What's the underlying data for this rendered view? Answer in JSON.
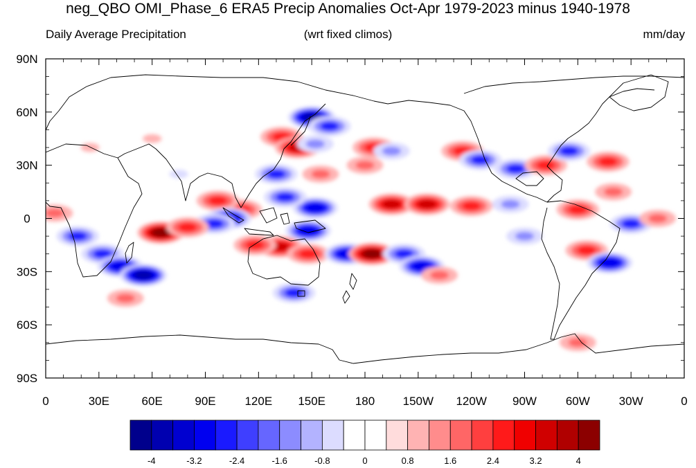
{
  "title": "neg_QBO OMI_Phase_6 ERA5 Precip Anomalies Oct-Apr 1979-2023 minus 1940-1978",
  "subtitle_left": "Daily Average Precipitation",
  "subtitle_center": "(wrt fixed climos)",
  "subtitle_right": "mm/day",
  "map": {
    "lon_labels": [
      "0",
      "30E",
      "60E",
      "90E",
      "120E",
      "150E",
      "180",
      "150W",
      "120W",
      "90W",
      "60W",
      "30W",
      "0"
    ],
    "lat_labels": [
      "90N",
      "60N",
      "30N",
      "0",
      "30S",
      "60S",
      "90S"
    ]
  },
  "colorbar": {
    "labels": [
      "-4",
      "-3.2",
      "-2.4",
      "-1.6",
      "-0.8",
      "0",
      "0.8",
      "1.6",
      "2.4",
      "3.2",
      "4"
    ],
    "colors": [
      "#00008c",
      "#0000b0",
      "#0000d0",
      "#0000f0",
      "#1a1aff",
      "#3f3fff",
      "#6666ff",
      "#8c8cff",
      "#b3b3ff",
      "#dcdcff",
      "#ffffff",
      "#ffffff",
      "#ffdcdc",
      "#ffb3b3",
      "#ff8c8c",
      "#ff6666",
      "#ff3f3f",
      "#ff1a1a",
      "#f00000",
      "#d00000",
      "#b00000",
      "#8c0000"
    ]
  },
  "anomalies": [
    {
      "lon": 150,
      "lat": 57,
      "val": -4.0
    },
    {
      "lon": 160,
      "lat": 52,
      "val": -2.4
    },
    {
      "lon": 133,
      "lat": 46,
      "val": 2.0
    },
    {
      "lon": 142,
      "lat": 40,
      "val": 3.2
    },
    {
      "lon": 152,
      "lat": 42,
      "val": -1.6
    },
    {
      "lon": 185,
      "lat": 40,
      "val": 2.4
    },
    {
      "lon": 180,
      "lat": 30,
      "val": 1.6
    },
    {
      "lon": 195,
      "lat": 38,
      "val": -1.6
    },
    {
      "lon": 235,
      "lat": 38,
      "val": 2.4
    },
    {
      "lon": 245,
      "lat": 33,
      "val": -2.0
    },
    {
      "lon": 265,
      "lat": 28,
      "val": -2.4
    },
    {
      "lon": 282,
      "lat": 30,
      "val": 2.0
    },
    {
      "lon": 295,
      "lat": 38,
      "val": -2.4
    },
    {
      "lon": 317,
      "lat": 32,
      "val": 2.4
    },
    {
      "lon": 320,
      "lat": 15,
      "val": 1.6
    },
    {
      "lon": 195,
      "lat": 8,
      "val": 3.2
    },
    {
      "lon": 215,
      "lat": 8,
      "val": 3.0
    },
    {
      "lon": 240,
      "lat": 7,
      "val": 2.4
    },
    {
      "lon": 262,
      "lat": 8,
      "val": -1.6
    },
    {
      "lon": 152,
      "lat": 6,
      "val": -3.2
    },
    {
      "lon": 135,
      "lat": 12,
      "val": -2.4
    },
    {
      "lon": 130,
      "lat": 25,
      "val": -2.4
    },
    {
      "lon": 110,
      "lat": 5,
      "val": 2.4
    },
    {
      "lon": 97,
      "lat": 10,
      "val": 2.0
    },
    {
      "lon": 103,
      "lat": 0,
      "val": -3.2
    },
    {
      "lon": 95,
      "lat": -3,
      "val": -2.4
    },
    {
      "lon": 65,
      "lat": -8,
      "val": 3.6
    },
    {
      "lon": 80,
      "lat": -5,
      "val": 2.4
    },
    {
      "lon": 148,
      "lat": -7,
      "val": -3.2
    },
    {
      "lon": 132,
      "lat": -16,
      "val": 3.2
    },
    {
      "lon": 118,
      "lat": -15,
      "val": 2.4
    },
    {
      "lon": 148,
      "lat": -20,
      "val": 2.0
    },
    {
      "lon": 170,
      "lat": -20,
      "val": -3.2
    },
    {
      "lon": 184,
      "lat": -20,
      "val": 3.6
    },
    {
      "lon": 202,
      "lat": -20,
      "val": -2.4
    },
    {
      "lon": 212,
      "lat": -27,
      "val": -3.2
    },
    {
      "lon": 222,
      "lat": -32,
      "val": 1.6
    },
    {
      "lon": 18,
      "lat": -10,
      "val": -2.4
    },
    {
      "lon": 32,
      "lat": -20,
      "val": -2.4
    },
    {
      "lon": 42,
      "lat": -27,
      "val": -3.2
    },
    {
      "lon": 55,
      "lat": -32,
      "val": -3.6
    },
    {
      "lon": 45,
      "lat": -45,
      "val": 1.6
    },
    {
      "lon": 305,
      "lat": -18,
      "val": 2.4
    },
    {
      "lon": 318,
      "lat": -25,
      "val": -3.2
    },
    {
      "lon": 330,
      "lat": -3,
      "val": -2.0
    },
    {
      "lon": 345,
      "lat": 0,
      "val": 1.6
    },
    {
      "lon": 5,
      "lat": 3,
      "val": 1.6
    },
    {
      "lon": 140,
      "lat": -42,
      "val": -2.0
    },
    {
      "lon": 300,
      "lat": -70,
      "val": 1.6
    },
    {
      "lon": 270,
      "lat": -10,
      "val": -1.6
    },
    {
      "lon": 60,
      "lat": 45,
      "val": 1.2
    },
    {
      "lon": 25,
      "lat": 40,
      "val": 1.2
    },
    {
      "lon": 75,
      "lat": 25,
      "val": -1.2
    },
    {
      "lon": 155,
      "lat": 25,
      "val": 1.6
    },
    {
      "lon": 300,
      "lat": 5,
      "val": 2.0
    }
  ]
}
